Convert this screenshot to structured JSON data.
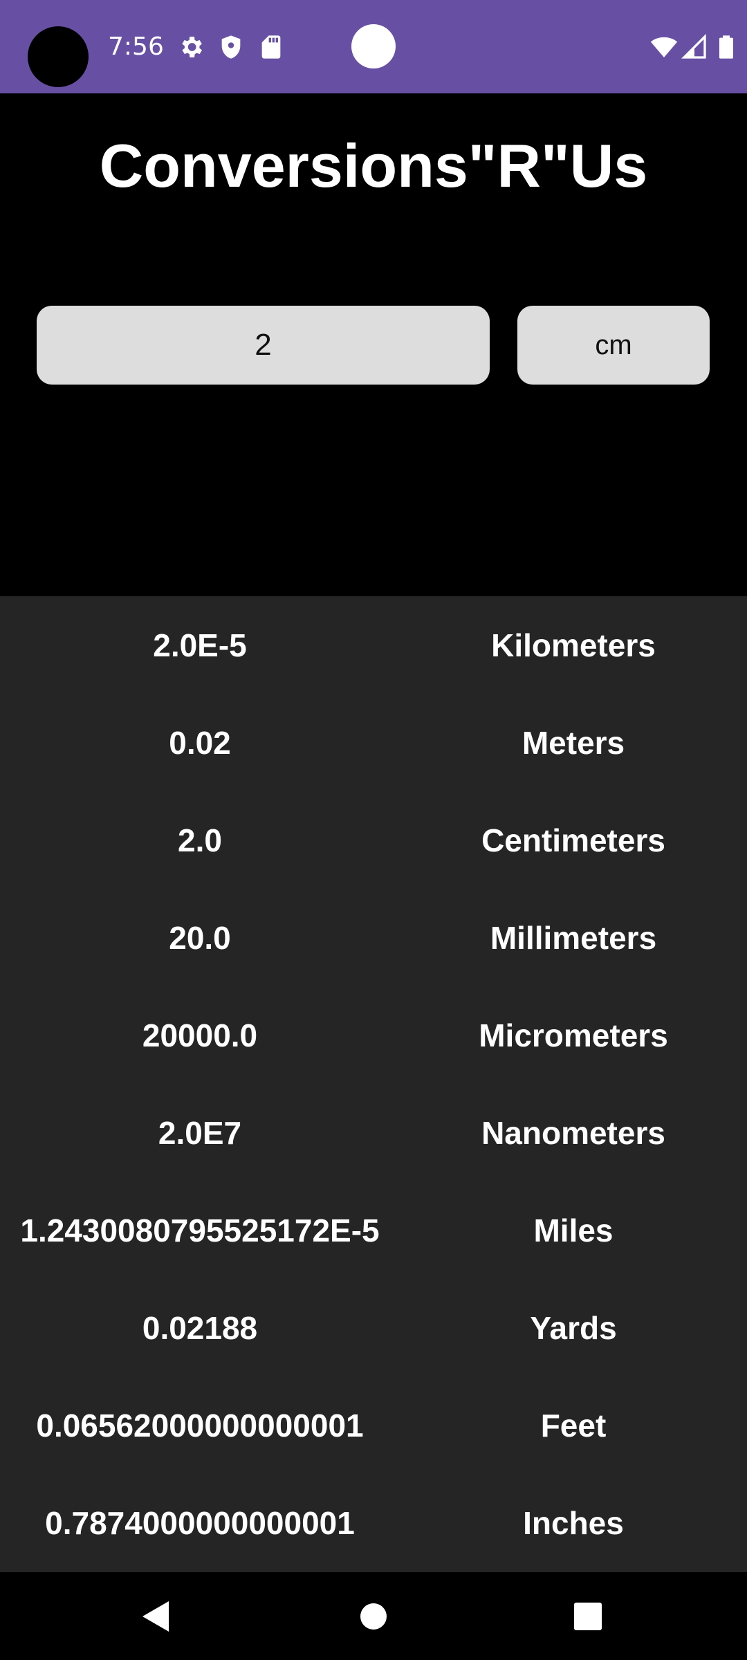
{
  "status_bar": {
    "time": "7:56",
    "icons": [
      "settings-icon",
      "shield-icon",
      "sd-card-icon",
      "wifi-icon",
      "signal-icon",
      "battery-icon"
    ],
    "color": "#6750a4"
  },
  "header": {
    "title": "Conversions\"R\"Us"
  },
  "input": {
    "value": "2",
    "unit": "cm"
  },
  "results": [
    {
      "value": "2.0E-5",
      "unit": "Kilometers"
    },
    {
      "value": "0.02",
      "unit": "Meters"
    },
    {
      "value": "2.0",
      "unit": "Centimeters"
    },
    {
      "value": "20.0",
      "unit": "Millimeters"
    },
    {
      "value": "20000.0",
      "unit": "Micrometers"
    },
    {
      "value": "2.0E7",
      "unit": "Nanometers"
    },
    {
      "value": "1.2430080795525172E-5",
      "unit": "Miles"
    },
    {
      "value": "0.02188",
      "unit": "Yards"
    },
    {
      "value": "0.06562000000000001",
      "unit": "Feet"
    },
    {
      "value": "0.7874000000000001",
      "unit": "Inches"
    }
  ],
  "nav_bar": {
    "icons": [
      "back-icon",
      "home-icon",
      "recents-icon"
    ]
  },
  "colors": {
    "background": "#000000",
    "results_background": "#252525",
    "field_background": "#dcdddc"
  }
}
